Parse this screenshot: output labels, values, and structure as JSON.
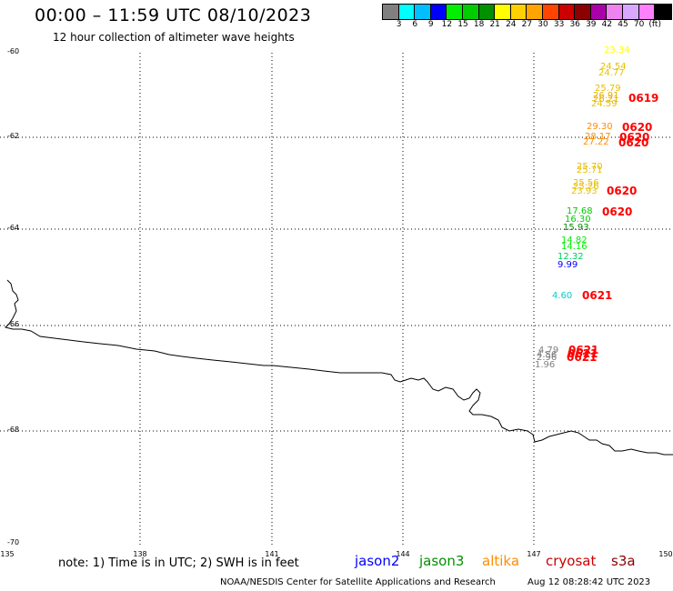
{
  "header": {
    "title": "00:00 – 11:59 UTC 08/10/2023",
    "subtitle": "12 hour collection of altimeter wave heights"
  },
  "colorbar": {
    "colors": [
      "#808080",
      "#00ffff",
      "#00bfff",
      "#0000ff",
      "#00ee00",
      "#00cc00",
      "#009000",
      "#ffff00",
      "#ffd000",
      "#ffa500",
      "#ff4500",
      "#cc0000",
      "#8b0000",
      "#aa00aa",
      "#ee82ee",
      "#d8a8ff",
      "#ff80ff",
      "#000000"
    ],
    "labels": [
      "3",
      "6",
      "9",
      "12",
      "15",
      "18",
      "21",
      "24",
      "27",
      "30",
      "33",
      "36",
      "39",
      "42",
      "45",
      "70",
      "(ft)"
    ]
  },
  "axes": {
    "lat_labels": [
      "-60",
      "-62",
      "-64",
      "-66",
      "-68",
      "-70"
    ],
    "lon_labels": [
      "135",
      "138",
      "141",
      "144",
      "147",
      "150"
    ]
  },
  "observations": [
    {
      "value": "23.34",
      "color": "#ffff00"
    },
    {
      "value": "24.54",
      "color": "#e8c000"
    },
    {
      "value": "24.77",
      "color": "#e8c000"
    },
    {
      "value": "25.79",
      "color": "#e8c000"
    },
    {
      "value": "26.91",
      "color": "#e8b000"
    },
    {
      "value": "26.21",
      "color": "#e8b000"
    },
    {
      "value": "24.59",
      "color": "#e8c000"
    },
    {
      "value": "29.30",
      "color": "#ff8c00"
    },
    {
      "value": "28.17",
      "color": "#ff8c00"
    },
    {
      "value": "27.22",
      "color": "#ff8c00"
    },
    {
      "value": "25.70",
      "color": "#e8c000"
    },
    {
      "value": "25.71",
      "color": "#e8c000"
    },
    {
      "value": "25.56",
      "color": "#e8c000"
    },
    {
      "value": "25.26",
      "color": "#e8c000"
    },
    {
      "value": "23.93",
      "color": "#e8c000"
    },
    {
      "value": "17.68",
      "color": "#00cc00"
    },
    {
      "value": "16.30",
      "color": "#00cc00"
    },
    {
      "value": "15.93",
      "color": "#009000"
    },
    {
      "value": "14.82",
      "color": "#00ee00"
    },
    {
      "value": "14.16",
      "color": "#00ee00"
    },
    {
      "value": "12.32",
      "color": "#00cc66"
    },
    {
      "value": "9.99",
      "color": "#0000ff"
    },
    {
      "value": "4.60",
      "color": "#00cccc"
    },
    {
      "value": "4.79",
      "color": "#808080"
    },
    {
      "value": "4.56",
      "color": "#808080"
    },
    {
      "value": "2.96",
      "color": "#808080"
    },
    {
      "value": "1.96",
      "color": "#808080"
    }
  ],
  "passes": [
    "0619",
    "0620",
    "0620",
    "0620",
    "0620",
    "0620",
    "0621",
    "0621",
    "0621",
    "0621"
  ],
  "footer": {
    "note": "note: 1) Time is in UTC; 2) SWH is in feet",
    "legend": [
      {
        "label": "jason2",
        "color": "#0000ff"
      },
      {
        "label": "jason3",
        "color": "#009000"
      },
      {
        "label": "altika",
        "color": "#ff8c00"
      },
      {
        "label": "cryosat",
        "color": "#cc0000"
      },
      {
        "label": "s3a",
        "color": "#8b0000"
      }
    ],
    "credit": "NOAA/NESDIS Center for Satellite Applications and Research",
    "timestamp": "Aug 12 08:28:42 UTC 2023"
  }
}
